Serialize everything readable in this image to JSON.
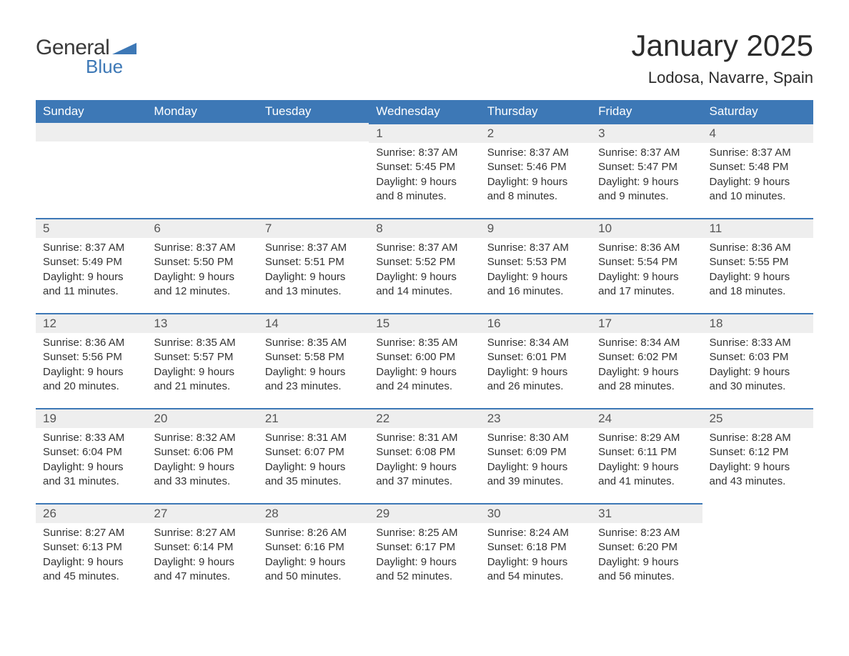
{
  "logo": {
    "general": "General",
    "blue": "Blue",
    "accent_color": "#3d78b6"
  },
  "title": "January 2025",
  "location": "Lodosa, Navarre, Spain",
  "colors": {
    "header_bg": "#3d78b6",
    "header_text": "#ffffff",
    "daynum_bg": "#eeeeee",
    "daynum_border": "#3d78b6",
    "body_text": "#333333",
    "page_bg": "#ffffff"
  },
  "day_headers": [
    "Sunday",
    "Monday",
    "Tuesday",
    "Wednesday",
    "Thursday",
    "Friday",
    "Saturday"
  ],
  "weeks": [
    [
      null,
      null,
      null,
      {
        "n": "1",
        "sunrise": "Sunrise: 8:37 AM",
        "sunset": "Sunset: 5:45 PM",
        "d1": "Daylight: 9 hours",
        "d2": "and 8 minutes."
      },
      {
        "n": "2",
        "sunrise": "Sunrise: 8:37 AM",
        "sunset": "Sunset: 5:46 PM",
        "d1": "Daylight: 9 hours",
        "d2": "and 8 minutes."
      },
      {
        "n": "3",
        "sunrise": "Sunrise: 8:37 AM",
        "sunset": "Sunset: 5:47 PM",
        "d1": "Daylight: 9 hours",
        "d2": "and 9 minutes."
      },
      {
        "n": "4",
        "sunrise": "Sunrise: 8:37 AM",
        "sunset": "Sunset: 5:48 PM",
        "d1": "Daylight: 9 hours",
        "d2": "and 10 minutes."
      }
    ],
    [
      {
        "n": "5",
        "sunrise": "Sunrise: 8:37 AM",
        "sunset": "Sunset: 5:49 PM",
        "d1": "Daylight: 9 hours",
        "d2": "and 11 minutes."
      },
      {
        "n": "6",
        "sunrise": "Sunrise: 8:37 AM",
        "sunset": "Sunset: 5:50 PM",
        "d1": "Daylight: 9 hours",
        "d2": "and 12 minutes."
      },
      {
        "n": "7",
        "sunrise": "Sunrise: 8:37 AM",
        "sunset": "Sunset: 5:51 PM",
        "d1": "Daylight: 9 hours",
        "d2": "and 13 minutes."
      },
      {
        "n": "8",
        "sunrise": "Sunrise: 8:37 AM",
        "sunset": "Sunset: 5:52 PM",
        "d1": "Daylight: 9 hours",
        "d2": "and 14 minutes."
      },
      {
        "n": "9",
        "sunrise": "Sunrise: 8:37 AM",
        "sunset": "Sunset: 5:53 PM",
        "d1": "Daylight: 9 hours",
        "d2": "and 16 minutes."
      },
      {
        "n": "10",
        "sunrise": "Sunrise: 8:36 AM",
        "sunset": "Sunset: 5:54 PM",
        "d1": "Daylight: 9 hours",
        "d2": "and 17 minutes."
      },
      {
        "n": "11",
        "sunrise": "Sunrise: 8:36 AM",
        "sunset": "Sunset: 5:55 PM",
        "d1": "Daylight: 9 hours",
        "d2": "and 18 minutes."
      }
    ],
    [
      {
        "n": "12",
        "sunrise": "Sunrise: 8:36 AM",
        "sunset": "Sunset: 5:56 PM",
        "d1": "Daylight: 9 hours",
        "d2": "and 20 minutes."
      },
      {
        "n": "13",
        "sunrise": "Sunrise: 8:35 AM",
        "sunset": "Sunset: 5:57 PM",
        "d1": "Daylight: 9 hours",
        "d2": "and 21 minutes."
      },
      {
        "n": "14",
        "sunrise": "Sunrise: 8:35 AM",
        "sunset": "Sunset: 5:58 PM",
        "d1": "Daylight: 9 hours",
        "d2": "and 23 minutes."
      },
      {
        "n": "15",
        "sunrise": "Sunrise: 8:35 AM",
        "sunset": "Sunset: 6:00 PM",
        "d1": "Daylight: 9 hours",
        "d2": "and 24 minutes."
      },
      {
        "n": "16",
        "sunrise": "Sunrise: 8:34 AM",
        "sunset": "Sunset: 6:01 PM",
        "d1": "Daylight: 9 hours",
        "d2": "and 26 minutes."
      },
      {
        "n": "17",
        "sunrise": "Sunrise: 8:34 AM",
        "sunset": "Sunset: 6:02 PM",
        "d1": "Daylight: 9 hours",
        "d2": "and 28 minutes."
      },
      {
        "n": "18",
        "sunrise": "Sunrise: 8:33 AM",
        "sunset": "Sunset: 6:03 PM",
        "d1": "Daylight: 9 hours",
        "d2": "and 30 minutes."
      }
    ],
    [
      {
        "n": "19",
        "sunrise": "Sunrise: 8:33 AM",
        "sunset": "Sunset: 6:04 PM",
        "d1": "Daylight: 9 hours",
        "d2": "and 31 minutes."
      },
      {
        "n": "20",
        "sunrise": "Sunrise: 8:32 AM",
        "sunset": "Sunset: 6:06 PM",
        "d1": "Daylight: 9 hours",
        "d2": "and 33 minutes."
      },
      {
        "n": "21",
        "sunrise": "Sunrise: 8:31 AM",
        "sunset": "Sunset: 6:07 PM",
        "d1": "Daylight: 9 hours",
        "d2": "and 35 minutes."
      },
      {
        "n": "22",
        "sunrise": "Sunrise: 8:31 AM",
        "sunset": "Sunset: 6:08 PM",
        "d1": "Daylight: 9 hours",
        "d2": "and 37 minutes."
      },
      {
        "n": "23",
        "sunrise": "Sunrise: 8:30 AM",
        "sunset": "Sunset: 6:09 PM",
        "d1": "Daylight: 9 hours",
        "d2": "and 39 minutes."
      },
      {
        "n": "24",
        "sunrise": "Sunrise: 8:29 AM",
        "sunset": "Sunset: 6:11 PM",
        "d1": "Daylight: 9 hours",
        "d2": "and 41 minutes."
      },
      {
        "n": "25",
        "sunrise": "Sunrise: 8:28 AM",
        "sunset": "Sunset: 6:12 PM",
        "d1": "Daylight: 9 hours",
        "d2": "and 43 minutes."
      }
    ],
    [
      {
        "n": "26",
        "sunrise": "Sunrise: 8:27 AM",
        "sunset": "Sunset: 6:13 PM",
        "d1": "Daylight: 9 hours",
        "d2": "and 45 minutes."
      },
      {
        "n": "27",
        "sunrise": "Sunrise: 8:27 AM",
        "sunset": "Sunset: 6:14 PM",
        "d1": "Daylight: 9 hours",
        "d2": "and 47 minutes."
      },
      {
        "n": "28",
        "sunrise": "Sunrise: 8:26 AM",
        "sunset": "Sunset: 6:16 PM",
        "d1": "Daylight: 9 hours",
        "d2": "and 50 minutes."
      },
      {
        "n": "29",
        "sunrise": "Sunrise: 8:25 AM",
        "sunset": "Sunset: 6:17 PM",
        "d1": "Daylight: 9 hours",
        "d2": "and 52 minutes."
      },
      {
        "n": "30",
        "sunrise": "Sunrise: 8:24 AM",
        "sunset": "Sunset: 6:18 PM",
        "d1": "Daylight: 9 hours",
        "d2": "and 54 minutes."
      },
      {
        "n": "31",
        "sunrise": "Sunrise: 8:23 AM",
        "sunset": "Sunset: 6:20 PM",
        "d1": "Daylight: 9 hours",
        "d2": "and 56 minutes."
      },
      null
    ]
  ]
}
